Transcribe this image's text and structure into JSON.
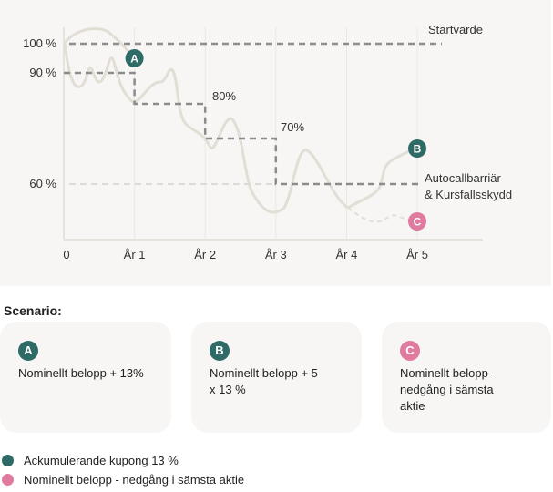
{
  "colors": {
    "accent_teal": "#2f6b66",
    "accent_pink": "#e07a9f",
    "curve": "#e2ded5",
    "panel": "#f7f6f4"
  },
  "chart_data": {
    "type": "line",
    "title": "",
    "x_ticks": [
      "0",
      "År 1",
      "År 2",
      "År 3",
      "År 4",
      "År 5"
    ],
    "y_ticks": [
      "100 %",
      "90 %",
      "60 %"
    ],
    "levels": [
      {
        "name": "Startvärde",
        "value": 100
      },
      {
        "name": "Autocallbarriär & Kursfallsskydd",
        "value": 60
      }
    ],
    "autocall_steps": [
      {
        "year": 0,
        "value": 90
      },
      {
        "year": 1,
        "value": 80
      },
      {
        "year": 2,
        "value": 70
      },
      {
        "year": 3,
        "value": 60
      }
    ],
    "step_labels": [
      "80%",
      "70%"
    ],
    "annotations": {
      "startvarde": "Startvärde",
      "barrier_line1": "Autocallbarriär",
      "barrier_line2": "& Kursfallsskydd"
    },
    "markers": [
      {
        "label": "A",
        "year": 1
      },
      {
        "label": "B",
        "year": 5
      },
      {
        "label": "C",
        "year": 5
      }
    ]
  },
  "scenario": {
    "heading": "Scenario:",
    "cards": [
      {
        "badge": "A",
        "text": "Nominellt belopp + 13%"
      },
      {
        "badge": "B",
        "text": "Nominellt belopp + 5 x 13 %"
      },
      {
        "badge": "C",
        "text": "Nominellt belopp - nedgång i  sämsta aktie"
      }
    ]
  },
  "legend": [
    {
      "label": "Ackumulerande kupong 13 %"
    },
    {
      "label": "Nominellt belopp - nedgång i sämsta aktie"
    }
  ]
}
